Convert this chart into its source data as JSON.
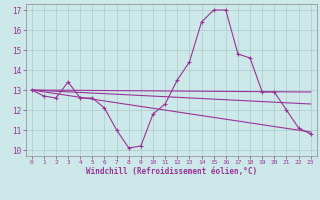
{
  "bg_color": "#cce8e8",
  "grid_color": "#aacccc",
  "line_color": "#993399",
  "xlabel": "Windchill (Refroidissement éolien,°C)",
  "xlim": [
    -0.5,
    23.5
  ],
  "ylim": [
    9.7,
    17.3
  ],
  "yticks": [
    10,
    11,
    12,
    13,
    14,
    15,
    16,
    17
  ],
  "xticks": [
    0,
    1,
    2,
    3,
    4,
    5,
    6,
    7,
    8,
    9,
    10,
    11,
    12,
    13,
    14,
    15,
    16,
    17,
    18,
    19,
    20,
    21,
    22,
    23
  ],
  "main_series": {
    "x": [
      0,
      1,
      2,
      3,
      4,
      5,
      6,
      7,
      8,
      9,
      10,
      11,
      12,
      13,
      14,
      15,
      16,
      17,
      18,
      19,
      20,
      21,
      22,
      23
    ],
    "y": [
      13.0,
      12.7,
      12.6,
      13.4,
      12.6,
      12.6,
      12.1,
      11.0,
      10.1,
      10.2,
      11.8,
      12.3,
      13.5,
      14.4,
      16.4,
      17.0,
      17.0,
      14.8,
      14.6,
      12.9,
      12.9,
      12.0,
      11.1,
      10.8
    ]
  },
  "trend_lines": [
    {
      "x": [
        0,
        23
      ],
      "y": [
        13.0,
        12.9
      ]
    },
    {
      "x": [
        0,
        23
      ],
      "y": [
        13.0,
        12.3
      ]
    },
    {
      "x": [
        0,
        23
      ],
      "y": [
        13.0,
        10.9
      ]
    }
  ]
}
